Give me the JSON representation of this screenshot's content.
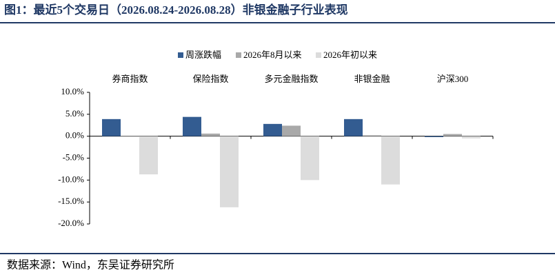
{
  "header": {
    "title": "图1：最近5个交易日（2026.08.24-2026.08.28）非银金融子行业表现"
  },
  "chart_data": {
    "type": "bar",
    "categories": [
      "券商指数",
      "保险指数",
      "多元金融指数",
      "非银金融",
      "沪深300"
    ],
    "series": [
      {
        "name": "周涨跌幅",
        "color": "#335c91",
        "values": [
          3.9,
          4.4,
          2.8,
          3.9,
          -0.2
        ]
      },
      {
        "name": "2026年8月以来",
        "color": "#a9a9a9",
        "values": [
          0.1,
          0.6,
          2.4,
          0.2,
          0.5
        ]
      },
      {
        "name": "2026年初以来",
        "color": "#dcdcdc",
        "values": [
          -8.7,
          -16.2,
          -10.0,
          -11.0,
          -0.5
        ]
      }
    ],
    "ylim": [
      -20,
      10
    ],
    "yticks": [
      {
        "value": -20,
        "label": "-20.0%"
      },
      {
        "value": -15,
        "label": "-15.0%"
      },
      {
        "value": -10,
        "label": "-10.0%"
      },
      {
        "value": -5,
        "label": "-5.0%"
      },
      {
        "value": 0,
        "label": "0.0%"
      },
      {
        "value": 5,
        "label": "5.0%"
      },
      {
        "value": 10,
        "label": "10.0%"
      }
    ],
    "legend": "top"
  },
  "footer": {
    "source": "数据来源：Wind，东吴证券研究所"
  }
}
